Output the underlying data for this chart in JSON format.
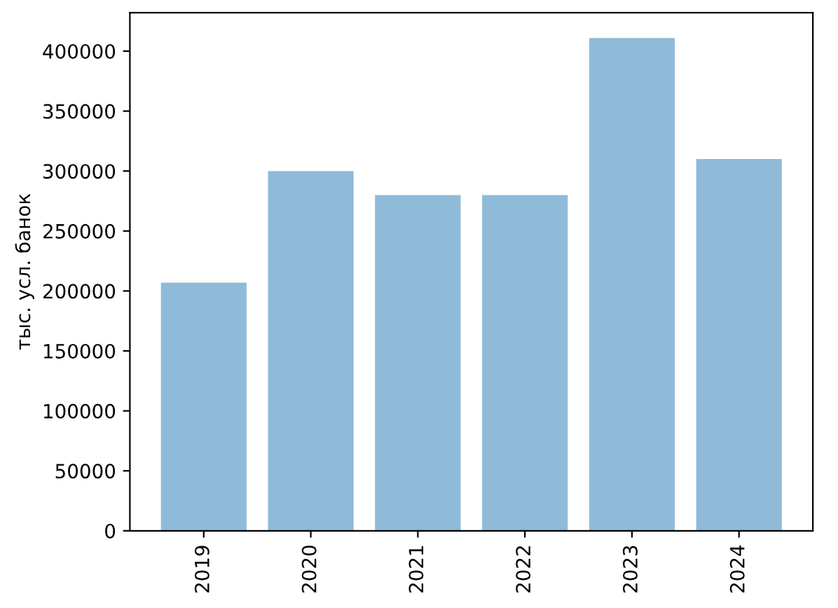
{
  "chart_data": {
    "type": "bar",
    "ylabel": "тыс. усл. банок",
    "categories": [
      "2019",
      "2020",
      "2021",
      "2022",
      "2023",
      "2024"
    ],
    "values": [
      207000,
      300000,
      280000,
      280000,
      411000,
      310000
    ],
    "color": "#8fbbd9",
    "ylim": [
      0,
      432000
    ],
    "yticks": [
      0,
      50000,
      100000,
      150000,
      200000,
      250000,
      300000,
      350000,
      400000
    ],
    "grid": false,
    "legend": false
  }
}
